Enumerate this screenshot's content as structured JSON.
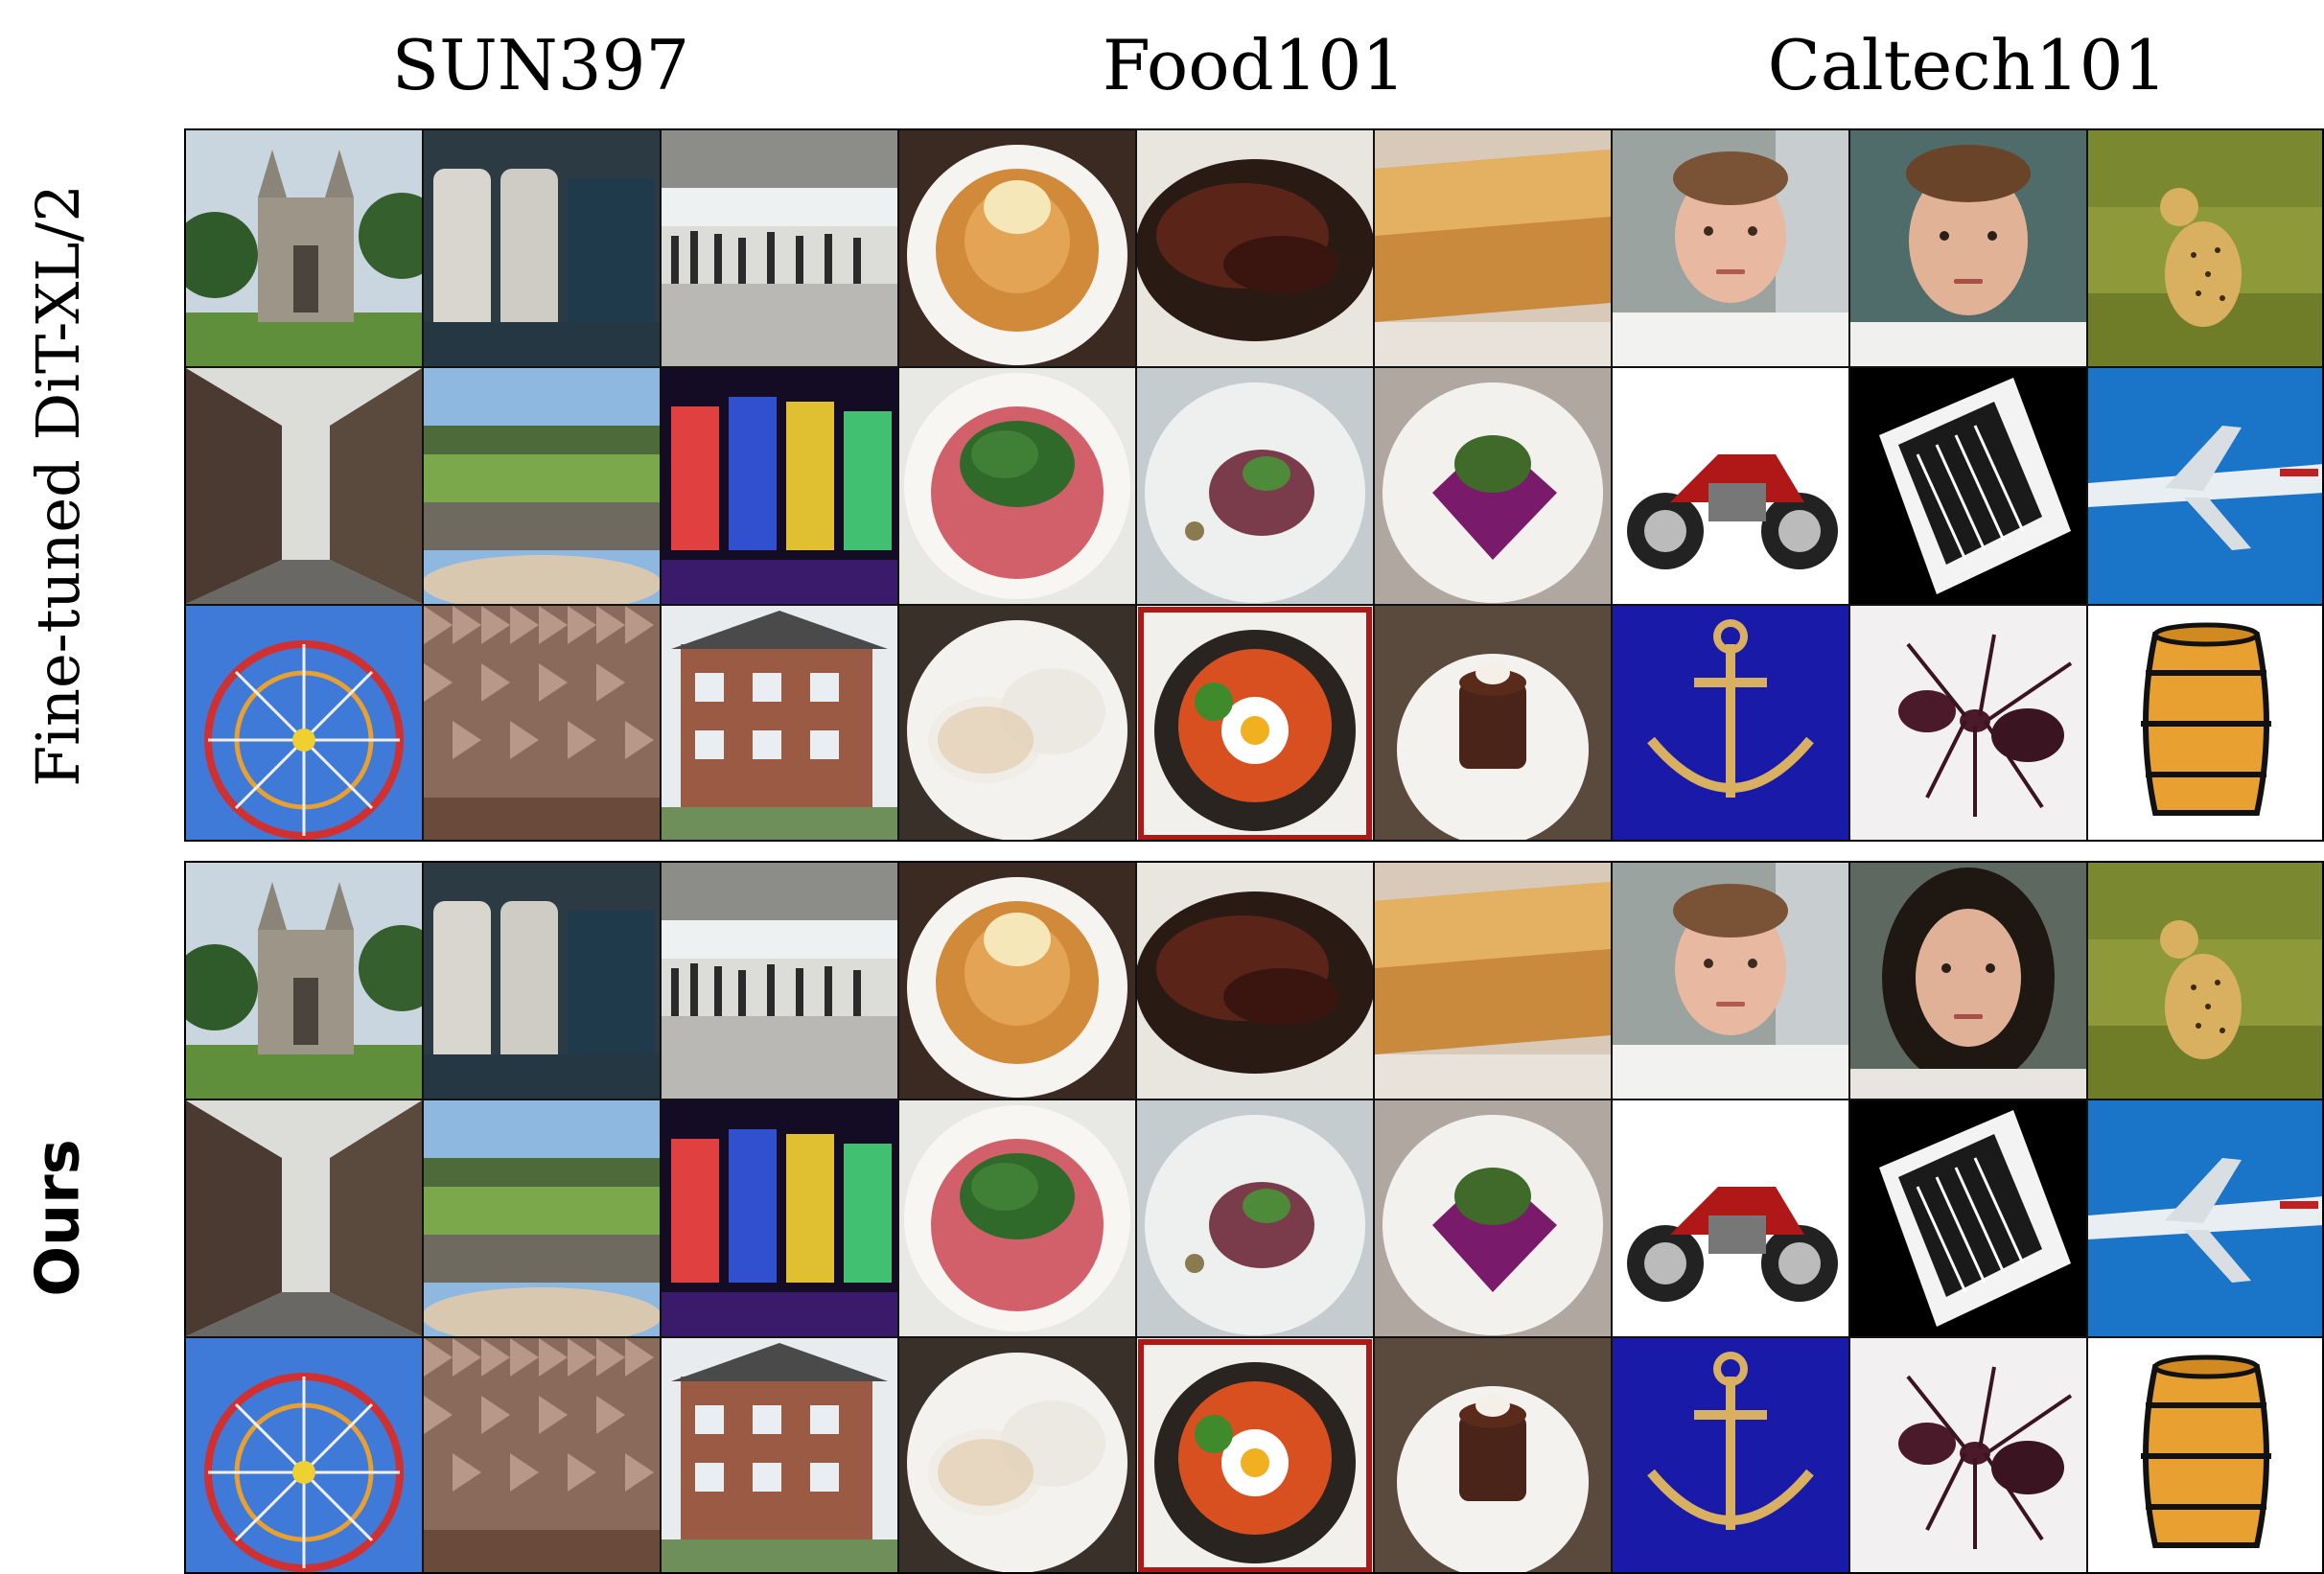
{
  "columns": [
    {
      "label": "SUN397"
    },
    {
      "label": "Food101"
    },
    {
      "label": "Caltech101"
    }
  ],
  "blocks": [
    {
      "label": "Fine-tuned DiT-XL/2",
      "style": "serif"
    },
    {
      "label": "Ours",
      "style": "sans"
    }
  ],
  "images": [
    [
      [
        "cathedral",
        "train-seats",
        "airport-hall",
        "pastry-cream",
        "ribs",
        "baklava",
        "face-man-office",
        "face-man",
        "cheetah"
      ],
      [
        "alley",
        "amphitheater",
        "arcade",
        "carpaccio",
        "tartare",
        "purple-dessert",
        "motorcycle",
        "accordion",
        "airplane"
      ],
      [
        "ferris-wheel",
        "anechoic-room",
        "apartment",
        "beignets",
        "bibimbap",
        "chocolate-cake",
        "anchor",
        "ant",
        "barrel"
      ]
    ],
    [
      [
        "cathedral",
        "train-seats",
        "airport-hall",
        "pastry-cream",
        "ribs",
        "baklava",
        "face-man-office",
        "face-woman",
        "cheetah"
      ],
      [
        "alley",
        "amphitheater",
        "arcade",
        "carpaccio",
        "tartare",
        "purple-dessert",
        "motorcycle",
        "accordion",
        "airplane"
      ],
      [
        "ferris-wheel",
        "anechoic-room",
        "apartment",
        "beignets",
        "bibimbap",
        "chocolate-cake",
        "anchor",
        "ant",
        "barrel"
      ]
    ]
  ]
}
